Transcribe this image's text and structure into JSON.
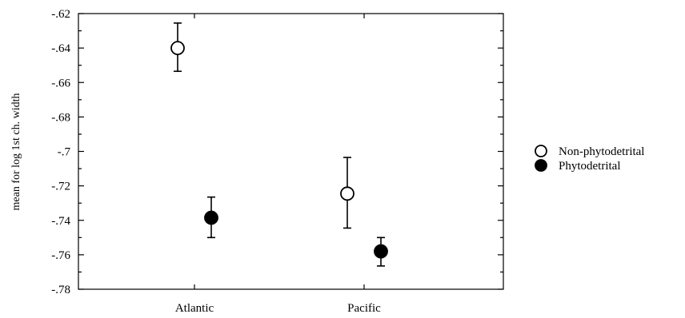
{
  "chart_data": {
    "type": "scatter",
    "title": "",
    "xlabel": "",
    "ylabel": "mean for log 1st ch. width",
    "categories": [
      "Atlantic",
      "Pacific"
    ],
    "ylim": [
      -0.78,
      -0.62
    ],
    "yticks": [
      "-.62",
      "-.64",
      "-.66",
      "-.68",
      "-.7",
      "-.72",
      "-.74",
      "-.76",
      "-.78"
    ],
    "grid": false,
    "legend_position": "right",
    "series": [
      {
        "name": "Non-phytodetrital",
        "marker": "open-circle",
        "color": "#000000",
        "points": [
          {
            "category": "Atlantic",
            "mean": -0.64,
            "lower": -0.6535,
            "upper": -0.6255
          },
          {
            "category": "Pacific",
            "mean": -0.7245,
            "lower": -0.7445,
            "upper": -0.7035
          }
        ]
      },
      {
        "name": "Phytodetrital",
        "marker": "filled-circle",
        "color": "#000000",
        "points": [
          {
            "category": "Atlantic",
            "mean": -0.7385,
            "lower": -0.75,
            "upper": -0.7265
          },
          {
            "category": "Pacific",
            "mean": -0.758,
            "lower": -0.7665,
            "upper": -0.75
          }
        ]
      }
    ]
  }
}
